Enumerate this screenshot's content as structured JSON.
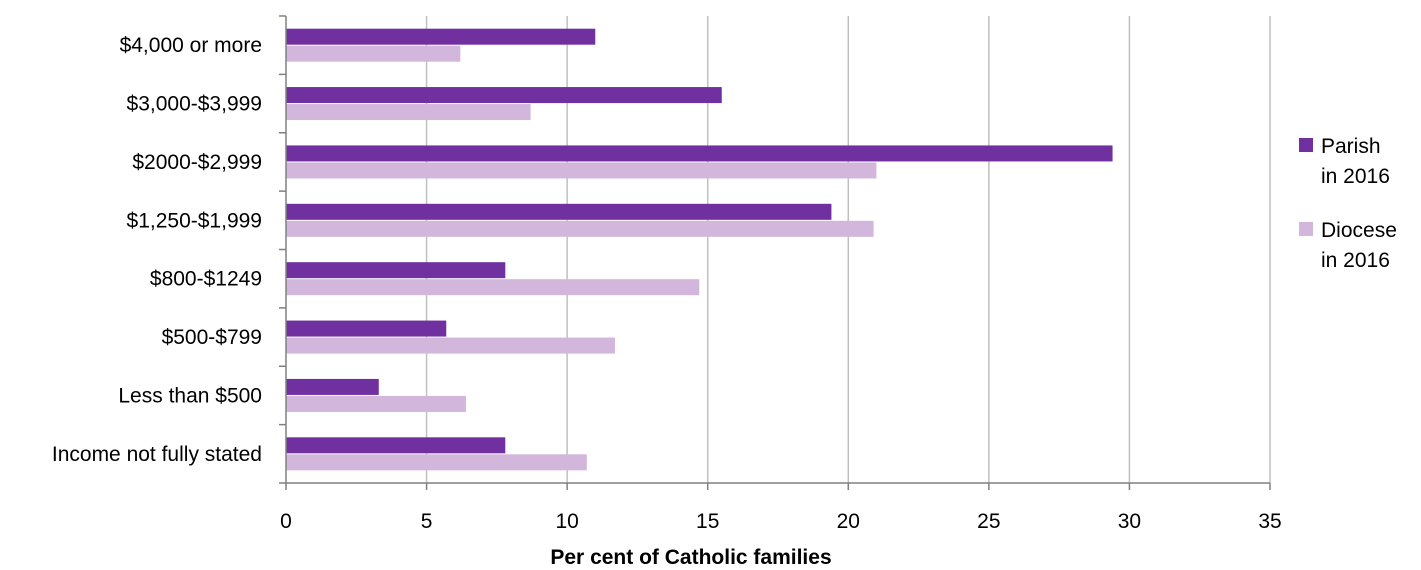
{
  "chart_data": {
    "type": "bar",
    "orientation": "horizontal",
    "categories": [
      "$4,000 or more",
      "$3,000-$3,999",
      "$2000-$2,999",
      "$1,250-$1,999",
      "$800-$1249",
      "$500-$799",
      "Less than $500",
      "Income not fully stated"
    ],
    "series": [
      {
        "name_lines": [
          "Parish",
          "in 2016"
        ],
        "color": "#7030a0",
        "values": [
          11.0,
          15.5,
          29.4,
          19.4,
          7.8,
          5.7,
          3.3,
          7.8
        ]
      },
      {
        "name_lines": [
          "Diocese",
          "in 2016"
        ],
        "color": "#d2b6dc",
        "values": [
          6.2,
          8.7,
          21.0,
          20.9,
          14.7,
          11.7,
          6.4,
          10.7
        ]
      }
    ],
    "xlabel": "Per cent of Catholic families",
    "ylabel": "",
    "xlim": [
      0,
      35
    ],
    "xticks": [
      "0",
      "5",
      "10",
      "15",
      "20",
      "25",
      "30",
      "35"
    ],
    "grid": true,
    "legend_position": "right"
  }
}
